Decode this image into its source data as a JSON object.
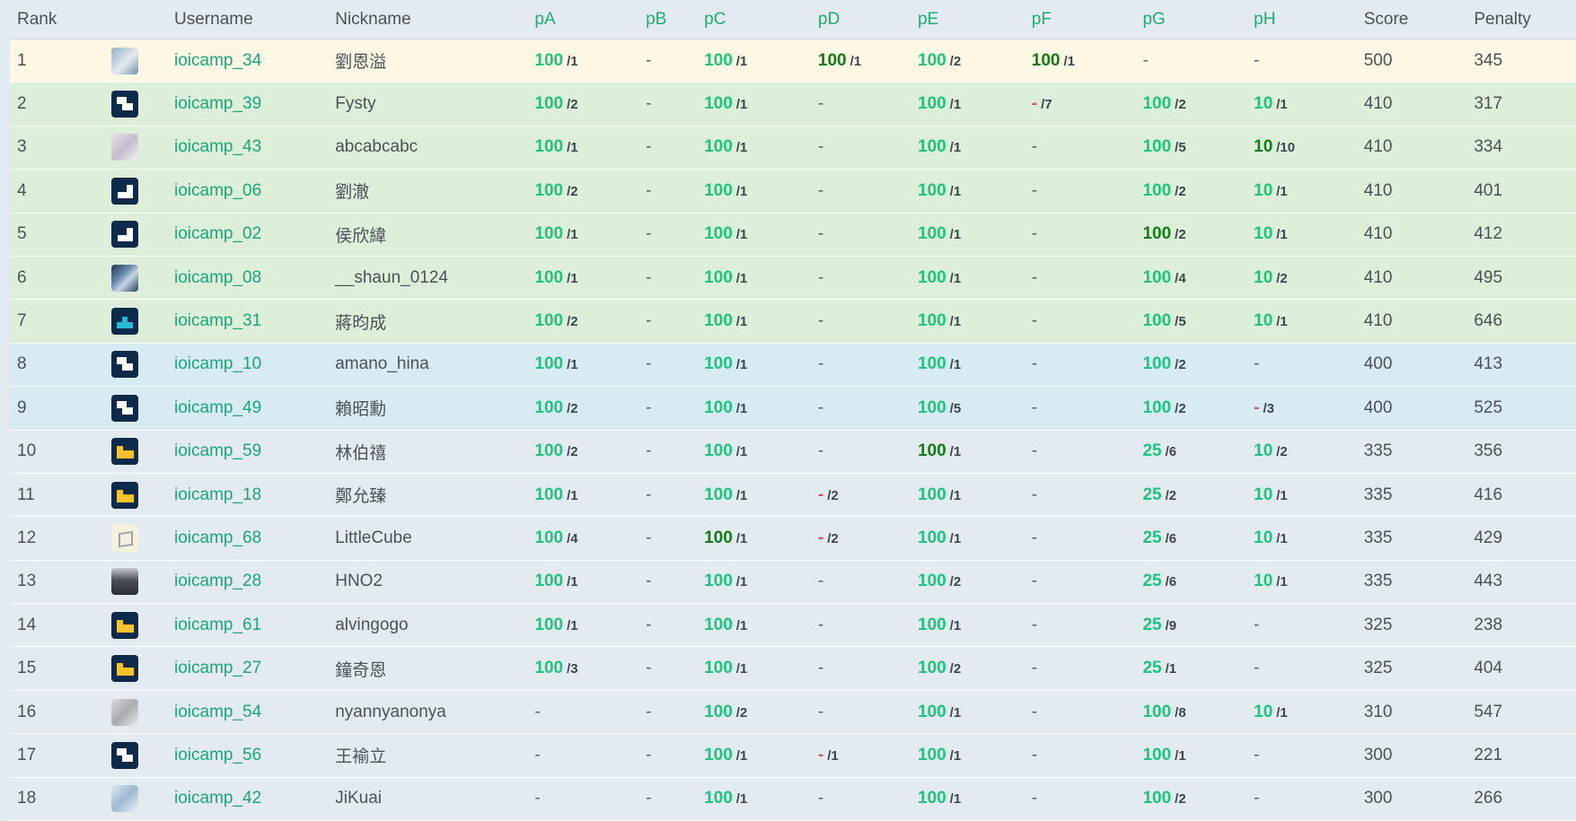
{
  "headers": {
    "rank": "Rank",
    "username": "Username",
    "nickname": "Nickname",
    "problems": [
      "pA",
      "pB",
      "pC",
      "pD",
      "pE",
      "pF",
      "pG",
      "pH"
    ],
    "score": "Score",
    "penalty": "Penalty"
  },
  "colors": {
    "gold_row": "#fdf7e4",
    "silver_row": "#deefd9",
    "bronze_row": "#d8ebf3",
    "points": "#1ec37d",
    "first_solve": "#127d14",
    "wrong": "#e0505a",
    "username": "#1aa67a"
  },
  "rows": [
    {
      "rank": "1",
      "tier": "gold",
      "avatar": "photo1",
      "username": "ioicamp_34",
      "nickname": "劉恩溢",
      "cells": [
        {
          "p": "100",
          "a": "/1"
        },
        {
          "d": "-"
        },
        {
          "p": "100",
          "a": "/1"
        },
        {
          "p": "100",
          "a": "/1",
          "f": true
        },
        {
          "p": "100",
          "a": "/2"
        },
        {
          "p": "100",
          "a": "/1",
          "f": true
        },
        {
          "d": "-"
        },
        {
          "d": "-"
        }
      ],
      "score": "500",
      "penalty": "345"
    },
    {
      "rank": "2",
      "tier": "silver",
      "avatar": "z",
      "username": "ioicamp_39",
      "nickname": "Fysty",
      "cells": [
        {
          "p": "100",
          "a": "/2"
        },
        {
          "d": "-"
        },
        {
          "p": "100",
          "a": "/1"
        },
        {
          "d": "-"
        },
        {
          "p": "100",
          "a": "/1"
        },
        {
          "m": "-",
          "a": "/7"
        },
        {
          "p": "100",
          "a": "/2"
        },
        {
          "p": "10",
          "a": "/1"
        }
      ],
      "score": "410",
      "penalty": "317"
    },
    {
      "rank": "3",
      "tier": "silver",
      "avatar": "photo2",
      "username": "ioicamp_43",
      "nickname": "abcabcabc",
      "cells": [
        {
          "p": "100",
          "a": "/1"
        },
        {
          "d": "-"
        },
        {
          "p": "100",
          "a": "/1"
        },
        {
          "d": "-"
        },
        {
          "p": "100",
          "a": "/1"
        },
        {
          "d": "-"
        },
        {
          "p": "100",
          "a": "/5"
        },
        {
          "p": "10",
          "a": "/10",
          "f": true
        }
      ],
      "score": "410",
      "penalty": "334"
    },
    {
      "rank": "4",
      "tier": "silver",
      "avatar": "step",
      "username": "ioicamp_06",
      "nickname": "劉澈",
      "cells": [
        {
          "p": "100",
          "a": "/2"
        },
        {
          "d": "-"
        },
        {
          "p": "100",
          "a": "/1"
        },
        {
          "d": "-"
        },
        {
          "p": "100",
          "a": "/1"
        },
        {
          "d": "-"
        },
        {
          "p": "100",
          "a": "/2"
        },
        {
          "p": "10",
          "a": "/1"
        }
      ],
      "score": "410",
      "penalty": "401"
    },
    {
      "rank": "5",
      "tier": "silver",
      "avatar": "step",
      "username": "ioicamp_02",
      "nickname": "侯欣緯",
      "cells": [
        {
          "p": "100",
          "a": "/1"
        },
        {
          "d": "-"
        },
        {
          "p": "100",
          "a": "/1"
        },
        {
          "d": "-"
        },
        {
          "p": "100",
          "a": "/1"
        },
        {
          "d": "-"
        },
        {
          "p": "100",
          "a": "/2",
          "f": true
        },
        {
          "p": "10",
          "a": "/1"
        }
      ],
      "score": "410",
      "penalty": "412"
    },
    {
      "rank": "6",
      "tier": "silver",
      "avatar": "photo3",
      "username": "ioicamp_08",
      "nickname": "__shaun_0124",
      "cells": [
        {
          "p": "100",
          "a": "/1"
        },
        {
          "d": "-"
        },
        {
          "p": "100",
          "a": "/1"
        },
        {
          "d": "-"
        },
        {
          "p": "100",
          "a": "/1"
        },
        {
          "d": "-"
        },
        {
          "p": "100",
          "a": "/4"
        },
        {
          "p": "10",
          "a": "/2"
        }
      ],
      "score": "410",
      "penalty": "495"
    },
    {
      "rank": "7",
      "tier": "silver",
      "avatar": "c",
      "username": "ioicamp_31",
      "nickname": "蔣昀成",
      "cells": [
        {
          "p": "100",
          "a": "/2"
        },
        {
          "d": "-"
        },
        {
          "p": "100",
          "a": "/1"
        },
        {
          "d": "-"
        },
        {
          "p": "100",
          "a": "/1"
        },
        {
          "d": "-"
        },
        {
          "p": "100",
          "a": "/5"
        },
        {
          "p": "10",
          "a": "/1"
        }
      ],
      "score": "410",
      "penalty": "646"
    },
    {
      "rank": "8",
      "tier": "bronze",
      "avatar": "z",
      "username": "ioicamp_10",
      "nickname": "amano_hina",
      "cells": [
        {
          "p": "100",
          "a": "/1"
        },
        {
          "d": "-"
        },
        {
          "p": "100",
          "a": "/1"
        },
        {
          "d": "-"
        },
        {
          "p": "100",
          "a": "/1"
        },
        {
          "d": "-"
        },
        {
          "p": "100",
          "a": "/2"
        },
        {
          "d": "-"
        }
      ],
      "score": "400",
      "penalty": "413"
    },
    {
      "rank": "9",
      "tier": "bronze",
      "avatar": "z",
      "username": "ioicamp_49",
      "nickname": "賴昭勳",
      "cells": [
        {
          "p": "100",
          "a": "/2"
        },
        {
          "d": "-"
        },
        {
          "p": "100",
          "a": "/1"
        },
        {
          "d": "-"
        },
        {
          "p": "100",
          "a": "/5"
        },
        {
          "d": "-"
        },
        {
          "p": "100",
          "a": "/2"
        },
        {
          "m": "-",
          "a": "/3"
        }
      ],
      "score": "400",
      "penalty": "525"
    },
    {
      "rank": "10",
      "tier": "none",
      "avatar": "l",
      "username": "ioicamp_59",
      "nickname": "林伯禧",
      "cells": [
        {
          "p": "100",
          "a": "/2"
        },
        {
          "d": "-"
        },
        {
          "p": "100",
          "a": "/1"
        },
        {
          "d": "-"
        },
        {
          "p": "100",
          "a": "/1",
          "f": true
        },
        {
          "d": "-"
        },
        {
          "p": "25",
          "a": "/6"
        },
        {
          "p": "10",
          "a": "/2"
        }
      ],
      "score": "335",
      "penalty": "356"
    },
    {
      "rank": "11",
      "tier": "none",
      "avatar": "l",
      "username": "ioicamp_18",
      "nickname": "鄭允臻",
      "cells": [
        {
          "p": "100",
          "a": "/1"
        },
        {
          "d": "-"
        },
        {
          "p": "100",
          "a": "/1"
        },
        {
          "m": "-",
          "a": "/2"
        },
        {
          "p": "100",
          "a": "/1"
        },
        {
          "d": "-"
        },
        {
          "p": "25",
          "a": "/2"
        },
        {
          "p": "10",
          "a": "/1"
        }
      ],
      "score": "335",
      "penalty": "416"
    },
    {
      "rank": "12",
      "tier": "none",
      "avatar": "cube",
      "username": "ioicamp_68",
      "nickname": "LittleCube",
      "cells": [
        {
          "p": "100",
          "a": "/4"
        },
        {
          "d": "-"
        },
        {
          "p": "100",
          "a": "/1",
          "f": true
        },
        {
          "m": "-",
          "a": "/2"
        },
        {
          "p": "100",
          "a": "/1"
        },
        {
          "d": "-"
        },
        {
          "p": "25",
          "a": "/6"
        },
        {
          "p": "10",
          "a": "/1"
        }
      ],
      "score": "335",
      "penalty": "429"
    },
    {
      "rank": "13",
      "tier": "none",
      "avatar": "photo4",
      "username": "ioicamp_28",
      "nickname": "HNO2",
      "cells": [
        {
          "p": "100",
          "a": "/1"
        },
        {
          "d": "-"
        },
        {
          "p": "100",
          "a": "/1"
        },
        {
          "d": "-"
        },
        {
          "p": "100",
          "a": "/2"
        },
        {
          "d": "-"
        },
        {
          "p": "25",
          "a": "/6"
        },
        {
          "p": "10",
          "a": "/1"
        }
      ],
      "score": "335",
      "penalty": "443"
    },
    {
      "rank": "14",
      "tier": "none",
      "avatar": "l",
      "username": "ioicamp_61",
      "nickname": "alvingogo",
      "cells": [
        {
          "p": "100",
          "a": "/1"
        },
        {
          "d": "-"
        },
        {
          "p": "100",
          "a": "/1"
        },
        {
          "d": "-"
        },
        {
          "p": "100",
          "a": "/1"
        },
        {
          "d": "-"
        },
        {
          "p": "25",
          "a": "/9"
        },
        {
          "d": "-"
        }
      ],
      "score": "325",
      "penalty": "238"
    },
    {
      "rank": "15",
      "tier": "none",
      "avatar": "l",
      "username": "ioicamp_27",
      "nickname": "鐘奇恩",
      "cells": [
        {
          "p": "100",
          "a": "/3"
        },
        {
          "d": "-"
        },
        {
          "p": "100",
          "a": "/1"
        },
        {
          "d": "-"
        },
        {
          "p": "100",
          "a": "/2"
        },
        {
          "d": "-"
        },
        {
          "p": "25",
          "a": "/1"
        },
        {
          "d": "-"
        }
      ],
      "score": "325",
      "penalty": "404"
    },
    {
      "rank": "16",
      "tier": "none",
      "avatar": "photo5",
      "username": "ioicamp_54",
      "nickname": "nyannyanonya",
      "cells": [
        {
          "d": "-"
        },
        {
          "d": "-"
        },
        {
          "p": "100",
          "a": "/2"
        },
        {
          "d": "-"
        },
        {
          "p": "100",
          "a": "/1"
        },
        {
          "d": "-"
        },
        {
          "p": "100",
          "a": "/8"
        },
        {
          "p": "10",
          "a": "/1"
        }
      ],
      "score": "310",
      "penalty": "547"
    },
    {
      "rank": "17",
      "tier": "none",
      "avatar": "z",
      "username": "ioicamp_56",
      "nickname": "王褕立",
      "cells": [
        {
          "d": "-"
        },
        {
          "d": "-"
        },
        {
          "p": "100",
          "a": "/1"
        },
        {
          "m": "-",
          "a": "/1"
        },
        {
          "p": "100",
          "a": "/1"
        },
        {
          "d": "-"
        },
        {
          "p": "100",
          "a": "/1"
        },
        {
          "d": "-"
        }
      ],
      "score": "300",
      "penalty": "221"
    },
    {
      "rank": "18",
      "tier": "none",
      "avatar": "photo6",
      "username": "ioicamp_42",
      "nickname": "JiKuai",
      "cells": [
        {
          "d": "-"
        },
        {
          "d": "-"
        },
        {
          "p": "100",
          "a": "/1"
        },
        {
          "d": "-"
        },
        {
          "p": "100",
          "a": "/1"
        },
        {
          "d": "-"
        },
        {
          "p": "100",
          "a": "/2"
        },
        {
          "d": "-"
        }
      ],
      "score": "300",
      "penalty": "266"
    }
  ]
}
